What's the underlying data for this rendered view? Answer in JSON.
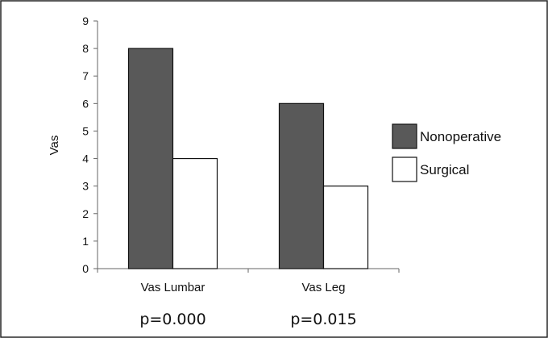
{
  "chart_data": {
    "type": "bar",
    "categories": [
      "Vas Lumbar",
      "Vas Leg"
    ],
    "series": [
      {
        "name": "Nonoperative",
        "values": [
          8,
          6
        ],
        "color": "#595959"
      },
      {
        "name": "Surgical",
        "values": [
          4,
          3
        ],
        "color": "#ffffff"
      }
    ],
    "ylabel": "Vas",
    "ylim": [
      0,
      9
    ],
    "yticks": [
      0,
      1,
      2,
      3,
      4,
      5,
      6,
      7,
      8,
      9
    ],
    "grid": false,
    "legend_position": "right",
    "annotations": [
      "p=0.000",
      "p=0.015"
    ]
  }
}
